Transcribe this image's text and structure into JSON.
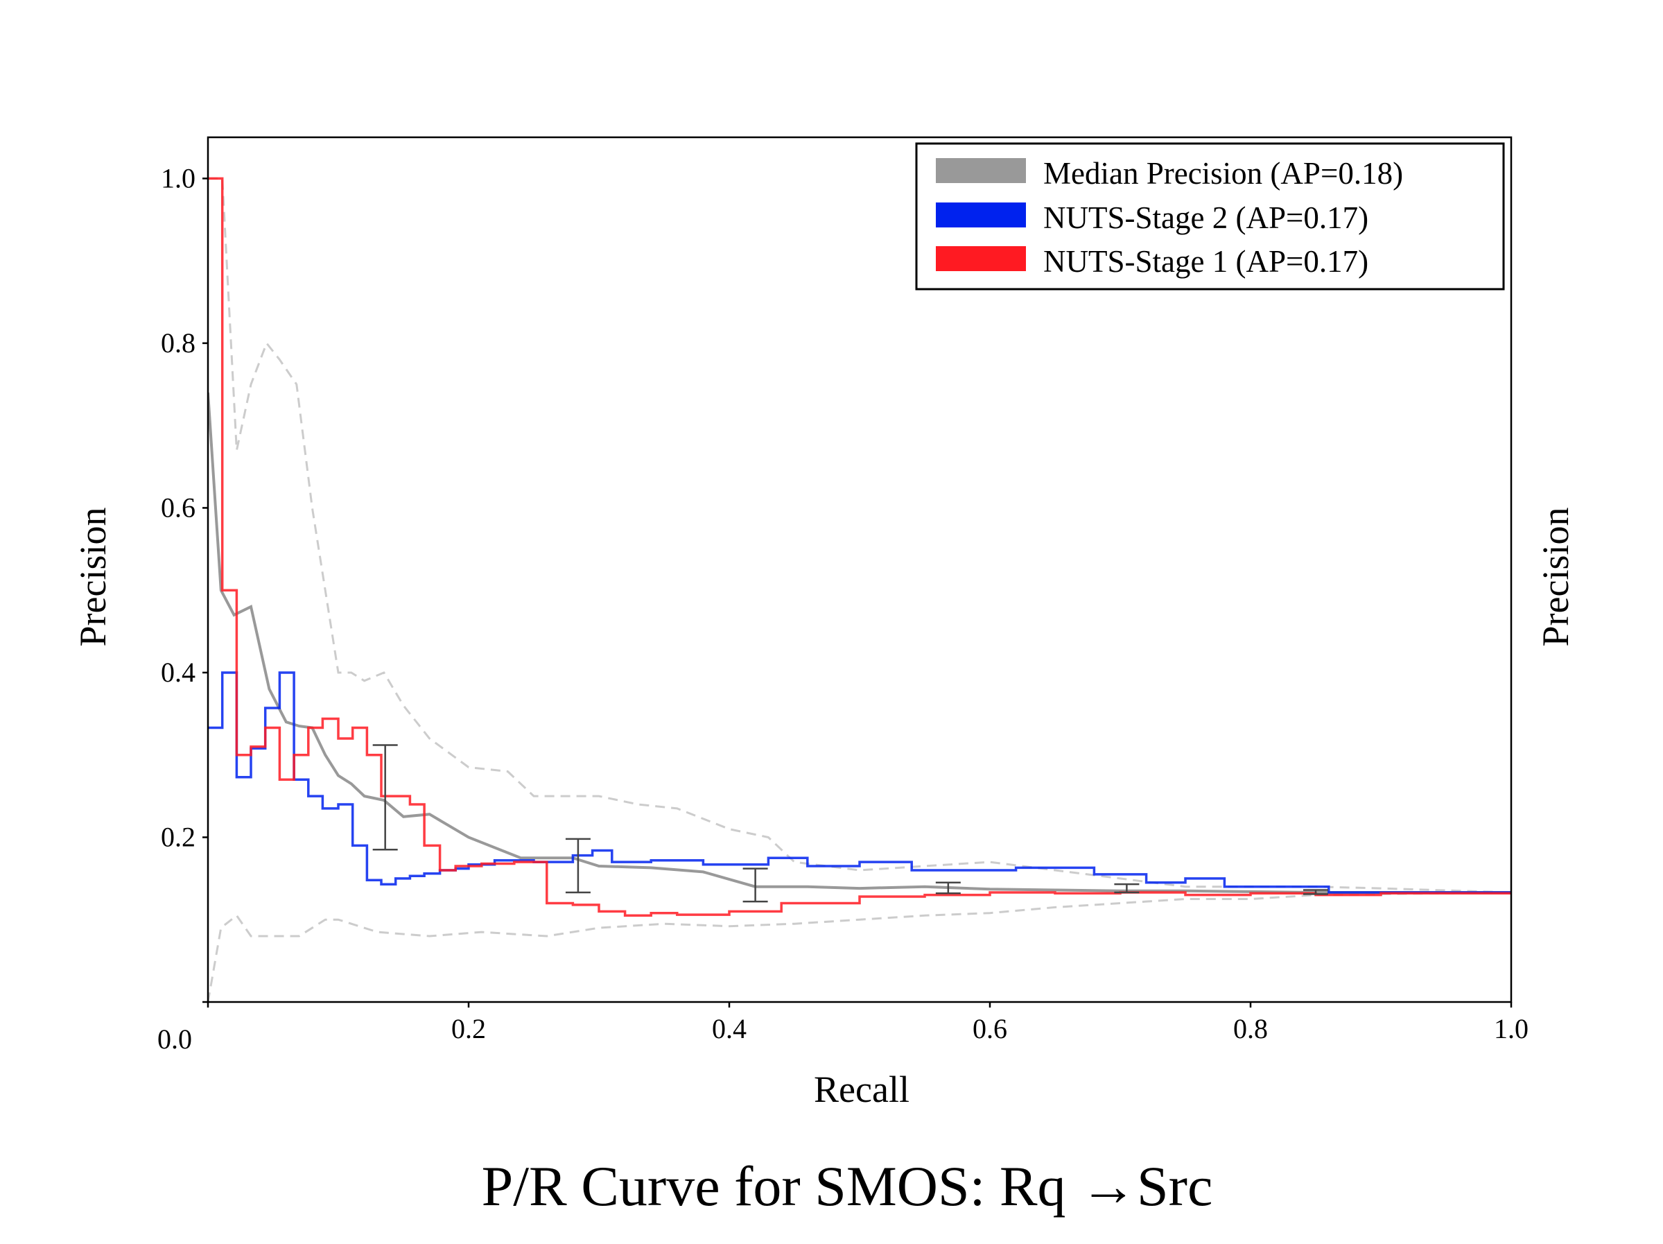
{
  "chart_data": {
    "type": "line",
    "title": "P/R Curve for SMOS: Rq →Src",
    "xlabel": "Recall",
    "ylabel": "Precision",
    "ylabel_right": "Precision",
    "xlim": [
      0.0,
      1.0
    ],
    "ylim": [
      0.0,
      1.05
    ],
    "x_ticks": [
      {
        "value": 0.0,
        "label": "0.0"
      },
      {
        "value": 0.2,
        "label": "0.2"
      },
      {
        "value": 0.4,
        "label": "0.4"
      },
      {
        "value": 0.6,
        "label": "0.6"
      },
      {
        "value": 0.8,
        "label": "0.8"
      },
      {
        "value": 1.0,
        "label": "1.0"
      }
    ],
    "y_ticks": [
      {
        "value": 0.2,
        "label": "0.2"
      },
      {
        "value": 0.4,
        "label": "0.4"
      },
      {
        "value": 0.6,
        "label": "0.6"
      },
      {
        "value": 0.8,
        "label": "0.8"
      },
      {
        "value": 1.0,
        "label": "1.0"
      }
    ],
    "legend_position": "top-right",
    "colors": {
      "median": "#999999",
      "stage2": "#0022ee",
      "stage1": "#ff1a22",
      "bounds": "#cccccc",
      "errorbar": "#444444"
    },
    "series": [
      {
        "name": "Median Precision (AP=0.18)",
        "key": "median",
        "style": "line",
        "x": [
          0.0,
          0.01,
          0.02,
          0.033,
          0.047,
          0.06,
          0.07,
          0.08,
          0.09,
          0.1,
          0.11,
          0.12,
          0.135,
          0.15,
          0.17,
          0.2,
          0.24,
          0.28,
          0.3,
          0.34,
          0.38,
          0.42,
          0.46,
          0.5,
          0.55,
          0.6,
          0.65,
          0.7,
          0.75,
          0.8,
          0.85,
          0.9,
          1.0
        ],
        "y": [
          0.74,
          0.5,
          0.47,
          0.48,
          0.38,
          0.34,
          0.335,
          0.333,
          0.3,
          0.275,
          0.265,
          0.25,
          0.245,
          0.225,
          0.228,
          0.2,
          0.175,
          0.175,
          0.165,
          0.163,
          0.158,
          0.14,
          0.14,
          0.138,
          0.14,
          0.137,
          0.136,
          0.135,
          0.135,
          0.134,
          0.133,
          0.133,
          0.133
        ]
      },
      {
        "name": "NUTS-Stage 2 (AP=0.17)",
        "key": "stage2",
        "style": "step",
        "x": [
          0.0,
          0.011,
          0.022,
          0.033,
          0.044,
          0.055,
          0.066,
          0.077,
          0.088,
          0.1,
          0.111,
          0.122,
          0.133,
          0.144,
          0.155,
          0.166,
          0.178,
          0.19,
          0.2,
          0.22,
          0.25,
          0.28,
          0.295,
          0.31,
          0.34,
          0.38,
          0.43,
          0.46,
          0.5,
          0.54,
          0.58,
          0.62,
          0.68,
          0.72,
          0.75,
          0.78,
          0.82,
          0.86,
          1.0
        ],
        "y": [
          0.333,
          0.4,
          0.273,
          0.308,
          0.357,
          0.4,
          0.27,
          0.25,
          0.235,
          0.24,
          0.19,
          0.148,
          0.143,
          0.15,
          0.153,
          0.156,
          0.16,
          0.162,
          0.167,
          0.172,
          0.17,
          0.178,
          0.184,
          0.17,
          0.172,
          0.167,
          0.175,
          0.165,
          0.17,
          0.16,
          0.16,
          0.163,
          0.155,
          0.145,
          0.15,
          0.14,
          0.14,
          0.133,
          0.133
        ]
      },
      {
        "name": "NUTS-Stage 1 (AP=0.17)",
        "key": "stage1",
        "style": "step",
        "x": [
          0.0,
          0.011,
          0.022,
          0.033,
          0.044,
          0.055,
          0.066,
          0.077,
          0.088,
          0.1,
          0.111,
          0.122,
          0.133,
          0.144,
          0.155,
          0.166,
          0.178,
          0.19,
          0.21,
          0.235,
          0.26,
          0.28,
          0.3,
          0.32,
          0.34,
          0.36,
          0.4,
          0.44,
          0.5,
          0.55,
          0.6,
          0.65,
          0.7,
          0.75,
          0.8,
          0.85,
          0.9,
          1.0
        ],
        "y": [
          1.0,
          0.5,
          0.3,
          0.31,
          0.333,
          0.27,
          0.3,
          0.333,
          0.344,
          0.32,
          0.333,
          0.3,
          0.25,
          0.25,
          0.24,
          0.19,
          0.16,
          0.165,
          0.168,
          0.17,
          0.12,
          0.118,
          0.11,
          0.105,
          0.108,
          0.106,
          0.11,
          0.12,
          0.128,
          0.13,
          0.133,
          0.132,
          0.133,
          0.13,
          0.132,
          0.13,
          0.132,
          0.133
        ]
      },
      {
        "name": "upper bound",
        "key": "bounds",
        "style": "dashed",
        "x": [
          0.0,
          0.011,
          0.022,
          0.033,
          0.045,
          0.055,
          0.068,
          0.08,
          0.09,
          0.1,
          0.11,
          0.12,
          0.135,
          0.15,
          0.17,
          0.2,
          0.23,
          0.25,
          0.27,
          0.3,
          0.33,
          0.36,
          0.4,
          0.43,
          0.45,
          0.5,
          0.55,
          0.6,
          0.65,
          0.7,
          0.75,
          0.8,
          0.85,
          0.9,
          1.0
        ],
        "y": [
          1.0,
          1.0,
          0.67,
          0.75,
          0.8,
          0.78,
          0.75,
          0.6,
          0.5,
          0.4,
          0.4,
          0.39,
          0.4,
          0.36,
          0.32,
          0.285,
          0.28,
          0.25,
          0.25,
          0.25,
          0.24,
          0.235,
          0.21,
          0.2,
          0.17,
          0.16,
          0.165,
          0.17,
          0.16,
          0.15,
          0.14,
          0.14,
          0.14,
          0.138,
          0.133
        ]
      },
      {
        "name": "lower bound",
        "key": "bounds",
        "style": "dashed",
        "x": [
          0.0,
          0.01,
          0.022,
          0.033,
          0.05,
          0.07,
          0.09,
          0.1,
          0.13,
          0.17,
          0.21,
          0.26,
          0.3,
          0.35,
          0.4,
          0.45,
          0.5,
          0.55,
          0.6,
          0.65,
          0.7,
          0.75,
          0.8,
          0.85,
          1.0
        ],
        "y": [
          0.0,
          0.09,
          0.105,
          0.08,
          0.08,
          0.08,
          0.1,
          0.1,
          0.085,
          0.08,
          0.085,
          0.08,
          0.09,
          0.095,
          0.092,
          0.095,
          0.1,
          0.105,
          0.108,
          0.115,
          0.12,
          0.125,
          0.125,
          0.13,
          0.133
        ]
      }
    ],
    "error_bars": [
      {
        "x": 0.136,
        "low": 0.185,
        "high": 0.312
      },
      {
        "x": 0.284,
        "low": 0.133,
        "high": 0.198
      },
      {
        "x": 0.42,
        "low": 0.122,
        "high": 0.162
      },
      {
        "x": 0.568,
        "low": 0.132,
        "high": 0.145
      },
      {
        "x": 0.705,
        "low": 0.133,
        "high": 0.143
      },
      {
        "x": 0.85,
        "low": 0.131,
        "high": 0.136
      }
    ]
  }
}
